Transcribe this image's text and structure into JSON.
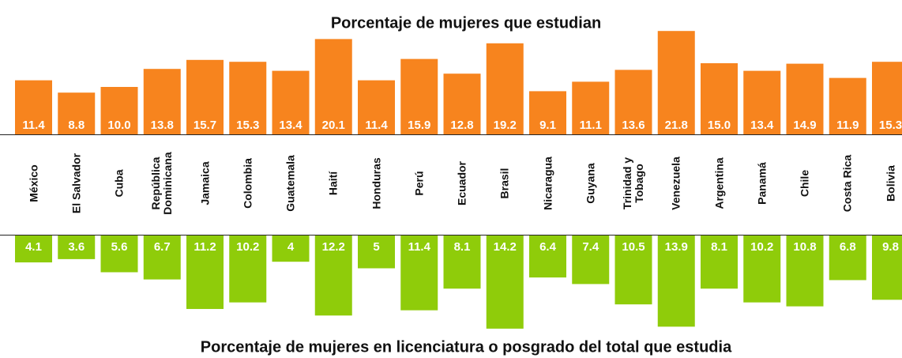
{
  "chart_data": [
    {
      "type": "bar",
      "title": "Porcentaje de mujeres que estudian",
      "color": "#f7841e",
      "categories": [
        "México",
        "El Salvador",
        "Cuba",
        "República Dominicana",
        "Jamaica",
        "Colombia",
        "Guatemala",
        "Haití",
        "Honduras",
        "Perú",
        "Ecuador",
        "Brasil",
        "Nicaragua",
        "Guyana",
        "Trinidad y Tobago",
        "Venezuela",
        "Argentina",
        "Panamá",
        "Chile",
        "Costa Rica",
        "Bolivia"
      ],
      "values": [
        11.4,
        8.8,
        10.0,
        13.8,
        15.7,
        15.3,
        13.4,
        20.1,
        11.4,
        15.9,
        12.8,
        19.2,
        9.1,
        11.1,
        13.6,
        21.8,
        15.0,
        13.4,
        14.9,
        11.9,
        15.3
      ],
      "value_labels": [
        "11.4",
        "8.8",
        "10.0",
        "13.8",
        "15.7",
        "15.3",
        "13.4",
        "20.1",
        "11.4",
        "15.9",
        "12.8",
        "19.2",
        "9.1",
        "11.1",
        "13.6",
        "21.8",
        "15.0",
        "13.4",
        "14.9",
        "11.9",
        "15.3"
      ]
    },
    {
      "type": "bar",
      "title": "Porcentaje de mujeres en licenciatura o posgrado del total que estudia",
      "color": "#8fcc0a",
      "values": [
        4.1,
        3.6,
        5.6,
        6.7,
        11.2,
        10.2,
        4.0,
        12.2,
        5.0,
        11.4,
        8.1,
        14.2,
        6.4,
        7.4,
        10.5,
        13.9,
        8.1,
        10.2,
        10.8,
        6.8,
        9.8
      ]
    }
  ]
}
